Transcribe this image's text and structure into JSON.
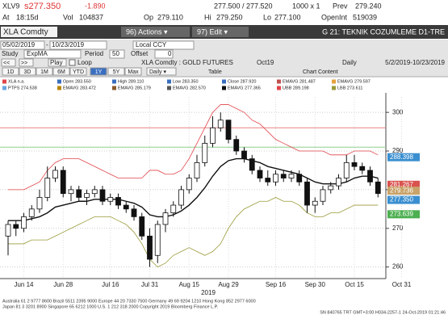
{
  "header": {
    "ticker": "XLV9",
    "last": "s277.350",
    "change": "-1.890",
    "bid_ask": "277.500 / 277.520",
    "size": "1000 x 1",
    "prev_label": "Prev",
    "prev": "279.240",
    "at_label": "At",
    "time": "18:15d",
    "vol_label": "Vol",
    "vol": "104837",
    "op_label": "Op",
    "op": "279.110",
    "hi_label": "Hi",
    "hi": "279.250",
    "lo_label": "Lo",
    "lo": "277.100",
    "oi_label": "OpenInt",
    "oi": "519039"
  },
  "toolbar": {
    "security": "XLA Comdty",
    "actions": "96) Actions ▾",
    "edit": "97) Edit ▾",
    "page_title": "G 21: TEKNIK COZUMLEME D1-TRE",
    "start_date": "05/02/2019",
    "dash": "-",
    "end_date": "10/23/2019",
    "currency": "Local CCY",
    "study_label": "Study",
    "study": "ExpMA",
    "period_label": "Period",
    "period": "50",
    "offset_label": "Offset",
    "offset": "0",
    "back": "<<",
    "forward": ">>",
    "play": "Play",
    "loop": "Loop",
    "ranges": [
      "1D",
      "3D",
      "1M",
      "6M",
      "YTD",
      "1Y",
      "5Y",
      "Max"
    ],
    "frequency": "Daily ▾",
    "table": "Table",
    "chart_content": "Chart Content"
  },
  "chart_data": {
    "type": "candlestick",
    "title": "XLA Comdty : GOLD FUTURES",
    "subtitle": "Oct19",
    "frequency_label": "Daily",
    "date_range": "5/2/2019-10/23/2019",
    "year_label": "2019",
    "categories": [
      null,
      null,
      "Jun 14",
      null,
      null,
      null,
      null,
      "Jun 28",
      null,
      null,
      null,
      null,
      null,
      "Jul 16",
      null,
      null,
      null,
      null,
      "Jul 31",
      null,
      null,
      null,
      null,
      "Aug 15",
      null,
      null,
      null,
      null,
      "Aug 29",
      null,
      null,
      null,
      null,
      null,
      "Sep 16",
      null,
      null,
      null,
      null,
      "Sep 30",
      null,
      null,
      null,
      null,
      "Oct 15",
      null,
      null,
      null,
      null,
      null,
      "Oct 31"
    ],
    "open": [
      268,
      271,
      270,
      273,
      275,
      278,
      283,
      285,
      279,
      280,
      278,
      279,
      280,
      277,
      278,
      276,
      275,
      273,
      268,
      263,
      271,
      274,
      276,
      280,
      283,
      287,
      292,
      296,
      298,
      293,
      290,
      288,
      285,
      283,
      282,
      284,
      283,
      284,
      282,
      276,
      277,
      280,
      281,
      283,
      287,
      286,
      285,
      282,
      null,
      null,
      null
    ],
    "high": [
      272,
      272,
      274,
      276,
      280,
      286,
      286,
      286,
      281,
      281,
      280,
      281,
      281,
      279,
      279,
      277,
      276,
      274,
      270,
      272,
      275,
      277,
      281,
      284,
      289,
      294,
      299,
      300,
      298,
      294,
      291,
      289,
      286,
      285,
      285,
      285,
      285,
      285,
      283,
      278,
      281,
      282,
      284,
      289,
      289,
      287,
      286,
      283,
      null,
      null,
      null
    ],
    "low": [
      263,
      268,
      269,
      272,
      274,
      277,
      282,
      278,
      277,
      277,
      276,
      278,
      276,
      276,
      275,
      274,
      272,
      267,
      260,
      261,
      269,
      273,
      275,
      279,
      282,
      286,
      291,
      295,
      292,
      289,
      287,
      284,
      282,
      281,
      281,
      282,
      282,
      281,
      274,
      274,
      276,
      279,
      280,
      282,
      285,
      284,
      281,
      278,
      null,
      null,
      null
    ],
    "close": [
      271,
      270,
      273,
      275,
      278,
      283,
      285,
      279,
      280,
      278,
      279,
      280,
      277,
      278,
      276,
      275,
      273,
      268,
      262,
      271,
      274,
      276,
      280,
      283,
      287,
      292,
      296,
      298,
      293,
      290,
      288,
      285,
      283,
      282,
      284,
      283,
      284,
      282,
      276,
      277,
      280,
      281,
      283,
      287,
      286,
      285,
      282,
      279,
      null,
      null,
      null
    ],
    "series": [
      {
        "name": "EMAVG 277.365",
        "color": "#111111",
        "values": [
          272,
          272,
          272,
          272.5,
          273,
          274,
          275.5,
          276,
          276.5,
          277,
          277,
          277.5,
          277.5,
          277.5,
          277.5,
          277,
          276.5,
          275.5,
          273.5,
          273,
          273,
          273.5,
          274.5,
          276,
          278,
          280.5,
          283.5,
          286,
          287.5,
          288,
          288,
          287.5,
          287,
          286,
          285.5,
          285,
          284.5,
          284,
          283,
          282,
          281.5,
          281.5,
          281.5,
          282,
          283,
          283.5,
          283.5,
          283,
          null,
          null,
          null
        ]
      },
      {
        "name": "UBB 289.198",
        "color": "#e0444a",
        "values": [
          280,
          280,
          280,
          281,
          282,
          285,
          287,
          288,
          288,
          288,
          287,
          286,
          285,
          284,
          283,
          283,
          283,
          283,
          285,
          285,
          284,
          284,
          285,
          288,
          292,
          296,
          300,
          302,
          302,
          301,
          300,
          298,
          297,
          295,
          293,
          292,
          291,
          290,
          290,
          290,
          290,
          289,
          289,
          289,
          290,
          290,
          290,
          289,
          null,
          null,
          null
        ]
      },
      {
        "name": "LBB 273.611",
        "color": "#9a9a3a",
        "values": [
          266,
          266,
          266,
          267,
          267,
          267,
          268,
          269,
          270,
          271,
          272,
          273,
          273,
          273,
          272,
          271,
          269,
          266,
          262,
          260,
          261,
          263,
          264,
          265,
          264,
          263,
          264,
          266,
          270,
          273,
          275,
          276,
          277,
          277,
          278,
          277,
          277,
          276,
          274,
          273,
          273,
          274,
          274,
          275,
          276,
          276,
          276,
          276,
          null,
          null,
          null
        ]
      }
    ],
    "legend": [
      {
        "text": "XLA n.a.",
        "color": "#e0444a"
      },
      {
        "text": "Open 283.550",
        "color": "#3a6fc0"
      },
      {
        "text": "High 289.110",
        "color": "#3a6fc0"
      },
      {
        "text": "Low 283.350",
        "color": "#3a6fc0"
      },
      {
        "text": "Close 287.920",
        "color": "#3a6fc0"
      },
      {
        "text": "EMAVG 281.487",
        "color": "#c0504d"
      },
      {
        "text": "EMAVG 279.597",
        "color": "#e6a23c"
      },
      {
        "text": "PTPS 274.538",
        "color": "#6aa6e0"
      },
      {
        "text": "EMAVG 283.472",
        "color": "#b8860b"
      },
      {
        "text": "EMAVG 285.179",
        "color": "#8b5a2b"
      },
      {
        "text": "EMAVG 282.570",
        "color": "#555555"
      }
    ],
    "hlines": [
      {
        "value": 296,
        "color": "#e88080"
      },
      {
        "value": 291,
        "color": "#8fcf8f"
      }
    ],
    "price_tags": [
      {
        "value": 288.398,
        "label": "288.398",
        "color": "#3a8fd0"
      },
      {
        "value": 281.267,
        "label": "281.267",
        "color": "#d9534f"
      },
      {
        "value": 279.736,
        "label": "279.736",
        "color": "#c9a36a"
      },
      {
        "value": 277.35,
        "label": "277.350",
        "color": "#3a8fd0"
      },
      {
        "value": 273.639,
        "label": "273.639",
        "color": "#4caf50"
      }
    ],
    "ylim": [
      257,
      304
    ],
    "yticks": [
      260,
      270,
      280,
      290,
      300
    ],
    "grid": true
  },
  "footer": {
    "lines": [
      "Australia 61 2 9777 8600 Brazil 5511 2395 9000 Europe 44 20 7330 7500 Germany 49 69 9204 1210 Hong Kong 852 2977 6000",
      "Japan 81 3 3201 8900    Singapore 65 6212 1000    U.S. 1 212 318 2000    Copyright 2019 Bloomberg Finance L.P.",
      "SN 840765 TRT  GMT+3:00 H034-2257-1 24-Oct-2019 01:21:46"
    ]
  }
}
